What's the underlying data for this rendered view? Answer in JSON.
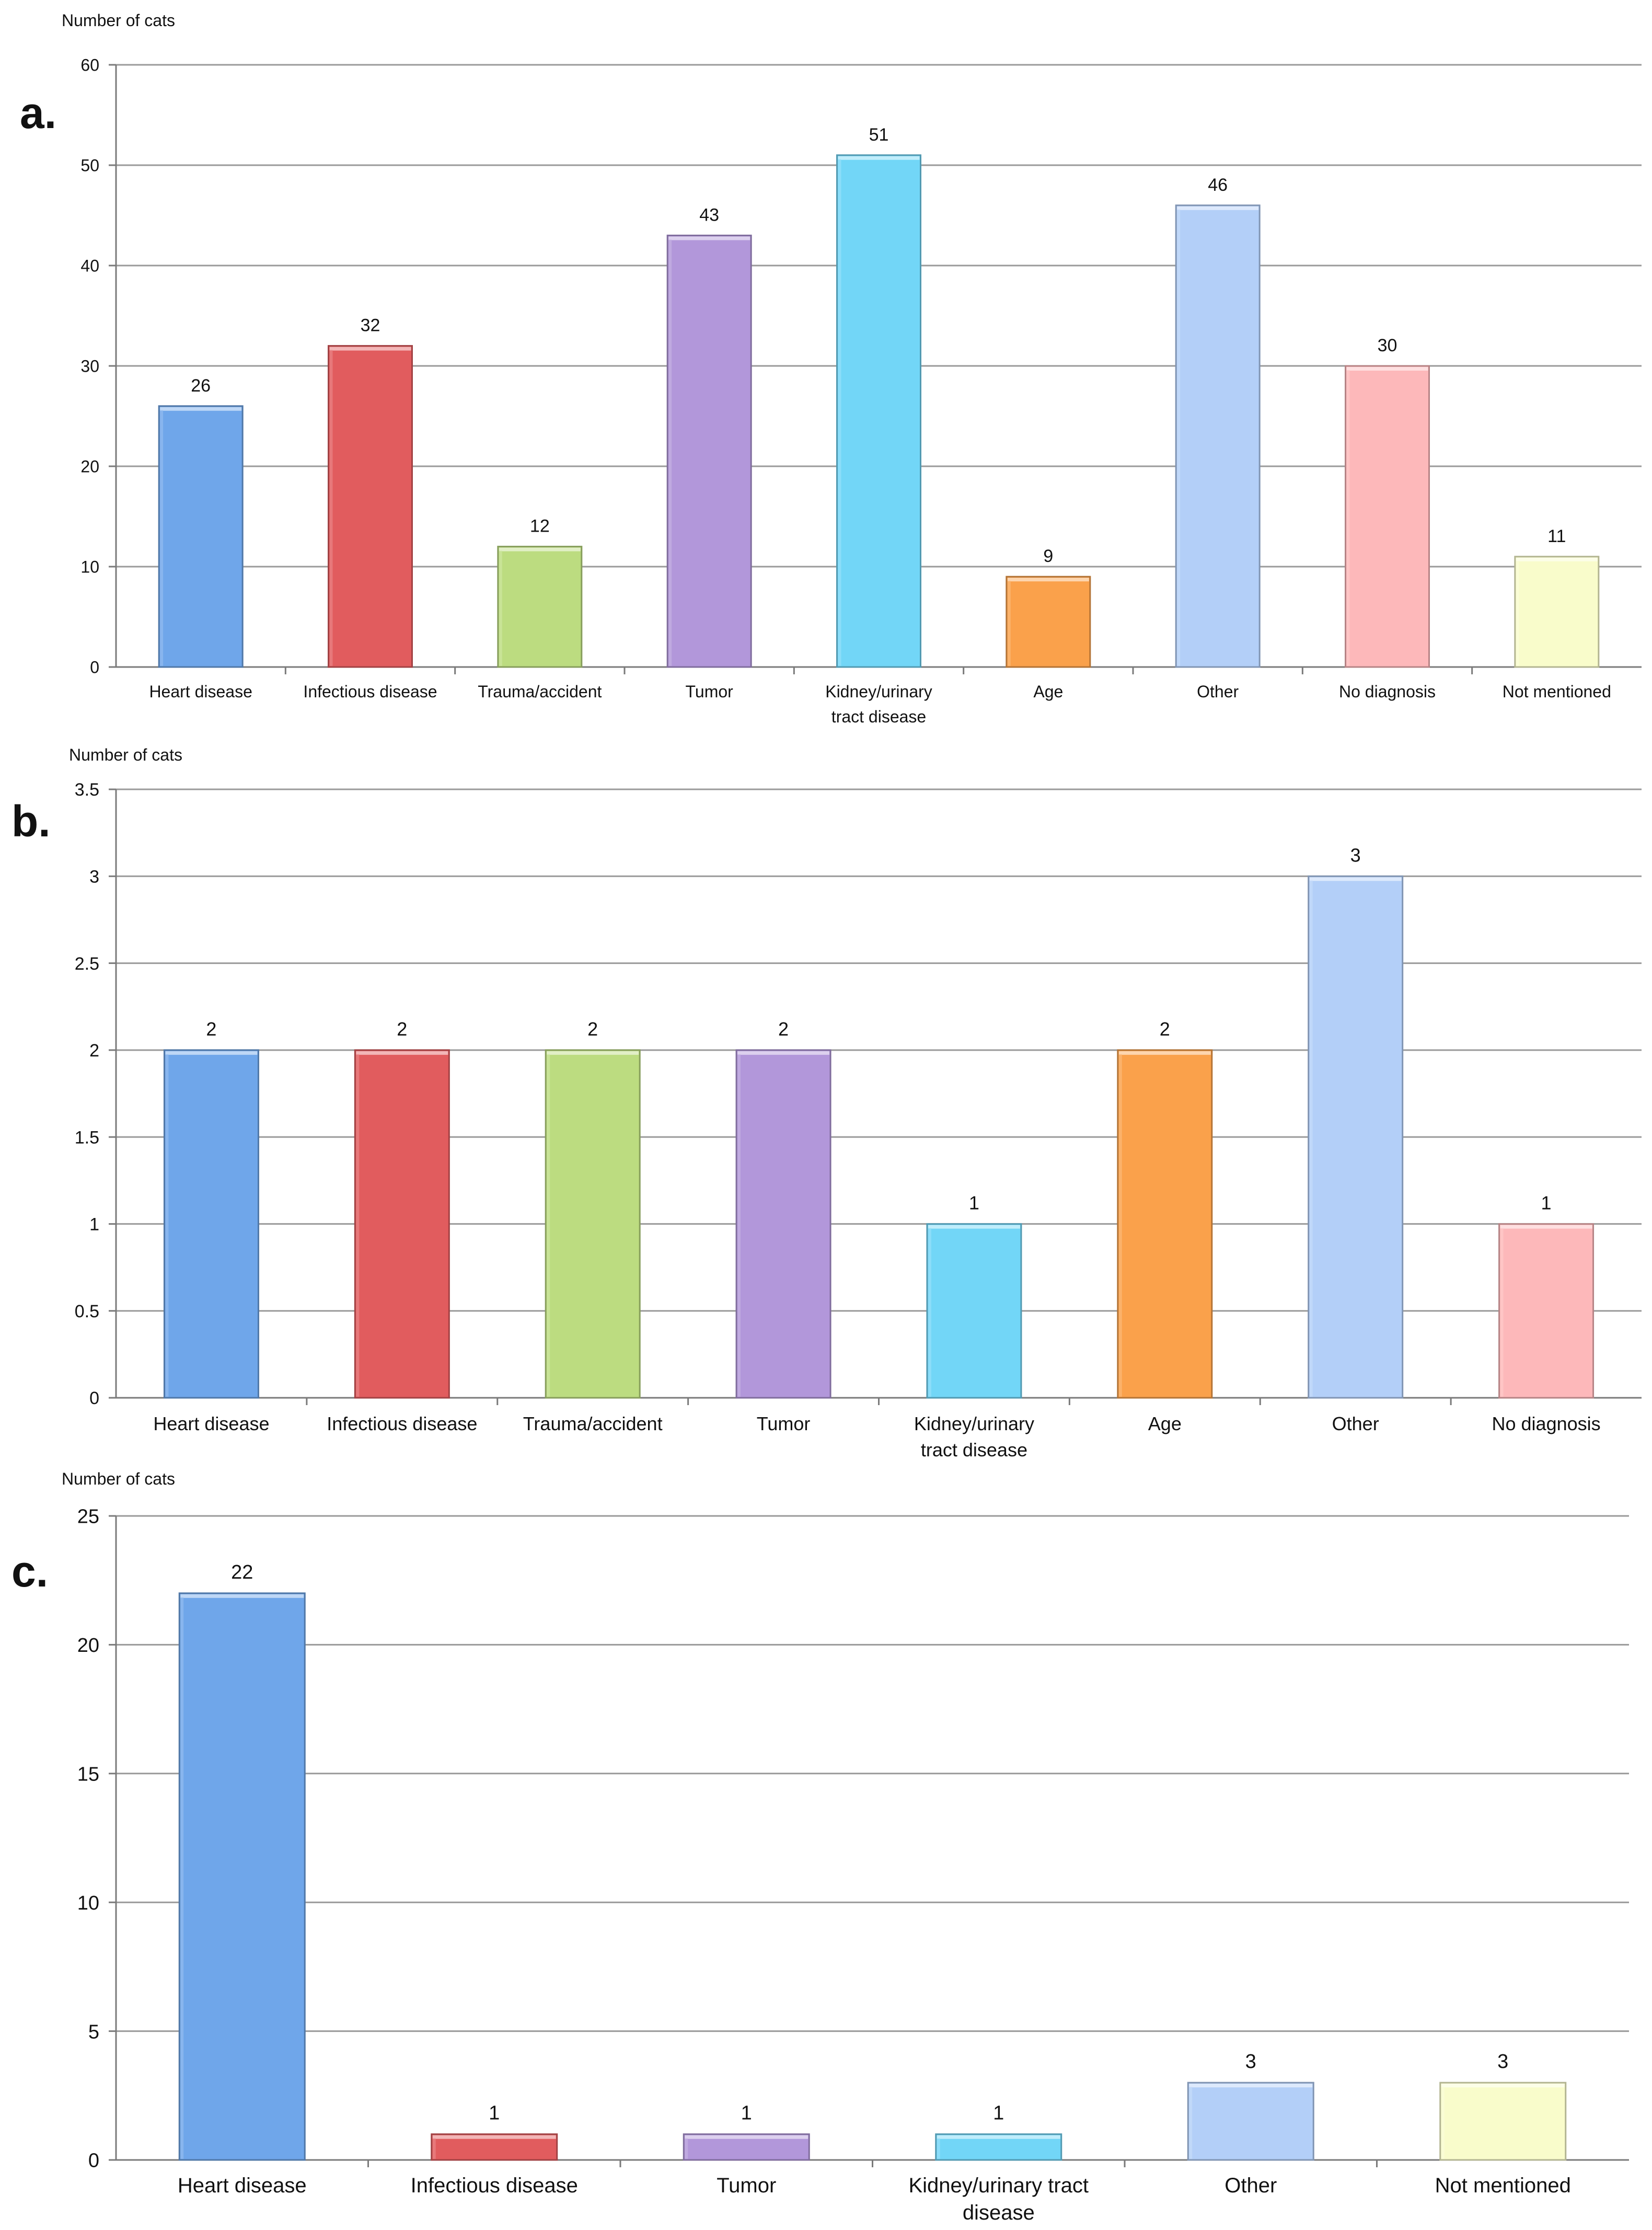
{
  "figure": {
    "colors": {
      "heart": "#6fa6ea",
      "infectious": "#e15c5e",
      "trauma": "#bcdc80",
      "tumor": "#b297da",
      "kidney": "#72d6f7",
      "age": "#faa14b",
      "other": "#b3cff8",
      "nodiag": "#fdb8ba",
      "notmentioned": "#f9fccb"
    }
  },
  "chart_data": [
    {
      "panel_label": "a.",
      "type": "bar",
      "ylabel": "Number of cats",
      "xlabel": "",
      "ylim": [
        0,
        60
      ],
      "yticks": [
        "0",
        "10",
        "20",
        "30",
        "40",
        "50",
        "60"
      ],
      "grid": true,
      "categories": [
        "Heart disease",
        "Infectious disease",
        "Trauma/accident",
        "Tumor",
        "Kidney/urinary tract disease",
        "Age",
        "Other",
        "No diagnosis",
        "Not mentioned"
      ],
      "values": [
        26,
        32,
        12,
        43,
        51,
        9,
        46,
        30,
        11
      ],
      "value_labels": [
        "26",
        "32",
        "12",
        "43",
        "51",
        "9",
        "46",
        "30",
        "11"
      ],
      "colors": [
        "#6fa6ea",
        "#e15c5e",
        "#bcdc80",
        "#b297da",
        "#72d6f7",
        "#faa14b",
        "#b3cff8",
        "#fdb8ba",
        "#f9fccb"
      ]
    },
    {
      "panel_label": "b.",
      "type": "bar",
      "ylabel": "Number of cats",
      "xlabel": "",
      "ylim": [
        0,
        3.5
      ],
      "yticks": [
        "0",
        "0.5",
        "1",
        "1.5",
        "2",
        "2.5",
        "3",
        "3.5"
      ],
      "grid": true,
      "categories": [
        "Heart disease",
        "Infectious disease",
        "Trauma/accident",
        "Tumor",
        "Kidney/urinary tract disease",
        "Age",
        "Other",
        "No diagnosis"
      ],
      "values": [
        2,
        2,
        2,
        2,
        1,
        2,
        3,
        1
      ],
      "value_labels": [
        "2",
        "2",
        "2",
        "2",
        "1",
        "2",
        "3",
        "1"
      ],
      "colors": [
        "#6fa6ea",
        "#e15c5e",
        "#bcdc80",
        "#b297da",
        "#72d6f7",
        "#faa14b",
        "#b3cff8",
        "#fdb8ba"
      ]
    },
    {
      "panel_label": "c.",
      "type": "bar",
      "ylabel": "Number of cats",
      "xlabel": "",
      "ylim": [
        0,
        25
      ],
      "yticks": [
        "0",
        "5",
        "10",
        "15",
        "20",
        "25"
      ],
      "grid": true,
      "categories": [
        "Heart disease",
        "Infectious disease",
        "Tumor",
        "Kidney/urinary tract disease",
        "Other",
        "Not mentioned"
      ],
      "values": [
        22,
        1,
        1,
        1,
        3,
        3
      ],
      "value_labels": [
        "22",
        "1",
        "1",
        "1",
        "3",
        "3"
      ],
      "colors": [
        "#6fa6ea",
        "#e15c5e",
        "#b297da",
        "#72d6f7",
        "#b3cff8",
        "#f9fccb"
      ]
    }
  ]
}
